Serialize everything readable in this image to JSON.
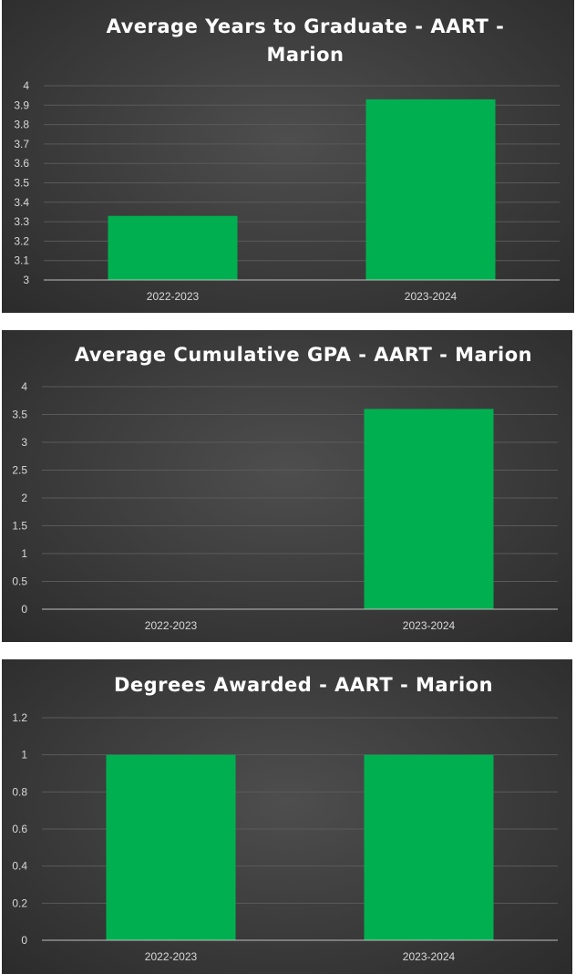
{
  "colors": {
    "bar": "#00b050",
    "text": "#ffffff",
    "tick_text": "#d9d9d9",
    "grid": "#5a5a5a",
    "axis": "#bfbfbf"
  },
  "chart_data": [
    {
      "type": "bar",
      "title_lines": [
        "Average Years to Graduate - AART -",
        "Marion"
      ],
      "categories": [
        "2022-2023",
        "2023-2024"
      ],
      "values": [
        3.33,
        3.93
      ],
      "ylim": [
        3,
        4
      ],
      "yticks": [
        "3",
        "3.1",
        "3.2",
        "3.3",
        "3.4",
        "3.5",
        "3.6",
        "3.7",
        "3.8",
        "3.9",
        "4"
      ],
      "xlabel": "",
      "ylabel": "",
      "grid": true,
      "legend": "none"
    },
    {
      "type": "bar",
      "title_lines": [
        "Average Cumulative GPA - AART - Marion"
      ],
      "categories": [
        "2022-2023",
        "2023-2024"
      ],
      "values": [
        0,
        3.6
      ],
      "ylim": [
        0,
        4
      ],
      "yticks": [
        "0",
        "0.5",
        "1",
        "1.5",
        "2",
        "2.5",
        "3",
        "3.5",
        "4"
      ],
      "xlabel": "",
      "ylabel": "",
      "grid": true,
      "legend": "none"
    },
    {
      "type": "bar",
      "title_lines": [
        "Degrees Awarded - AART - Marion"
      ],
      "categories": [
        "2022-2023",
        "2023-2024"
      ],
      "values": [
        1,
        1
      ],
      "ylim": [
        0,
        1.2
      ],
      "yticks": [
        "0",
        "0.2",
        "0.4",
        "0.6",
        "0.8",
        "1",
        "1.2"
      ],
      "xlabel": "",
      "ylabel": "",
      "grid": true,
      "legend": "none"
    }
  ]
}
